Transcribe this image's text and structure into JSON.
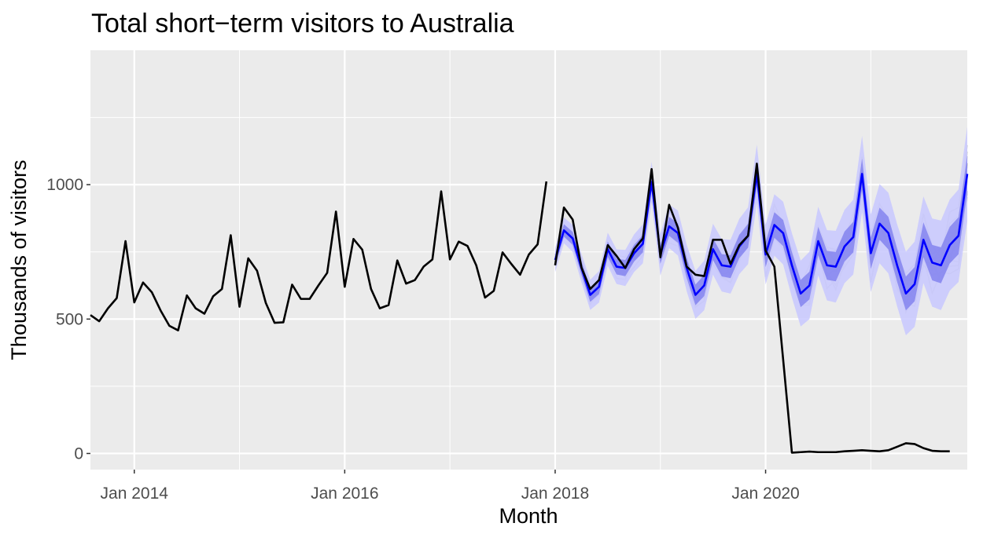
{
  "chart_data": {
    "type": "line",
    "title": "Total short−term visitors to Australia",
    "xlabel": "Month",
    "ylabel": "Thousands of visitors",
    "x_ticks": [
      "Jan 2014",
      "Jan 2016",
      "Jan 2018",
      "Jan 2020"
    ],
    "y_ticks": [
      "0",
      "500",
      "1000"
    ],
    "xlim": [
      "2013-08",
      "2021-12"
    ],
    "ylim": [
      -60,
      1500
    ],
    "grid": true,
    "legend": "none",
    "colors": {
      "panel": "#ebebeb",
      "grid": "#ffffff",
      "actual": "#000000",
      "forecast_mean": "#0000ff",
      "interval_80": "#7a7aee",
      "interval_95": "#c8c8ff",
      "sample_paths": "#cccccc"
    },
    "series": [
      {
        "role": "observed",
        "start": "2013-08",
        "values": [
          515,
          492,
          540,
          578,
          790,
          562,
          636,
          600,
          532,
          475,
          458,
          588,
          540,
          520,
          585,
          612,
          812,
          546,
          726,
          680,
          560,
          486,
          488,
          628,
          575,
          575,
          625,
          672,
          900,
          620,
          798,
          758,
          612,
          540,
          552,
          718,
          632,
          645,
          695,
          722,
          975,
          722,
          788,
          772,
          700,
          580,
          605,
          748,
          705,
          665,
          740,
          778,
          1012
        ]
      },
      {
        "role": "observed",
        "start": "2018-01",
        "values": [
          700,
          915,
          870,
          692,
          612,
          645,
          775,
          735,
          690,
          760,
          800,
          1058,
          730,
          925,
          840,
          695,
          665,
          660,
          795,
          795,
          705,
          775,
          810,
          1078,
          755,
          695,
          350,
          3,
          5,
          7,
          5,
          5,
          5,
          8,
          10,
          12,
          10,
          8,
          12,
          25,
          38,
          35,
          20,
          10,
          8,
          8
        ]
      },
      {
        "role": "forecast_mean",
        "start": "2018-01",
        "values": [
          720,
          830,
          800,
          690,
          590,
          620,
          760,
          695,
          690,
          745,
          780,
          1010,
          740,
          845,
          820,
          690,
          590,
          625,
          760,
          700,
          695,
          770,
          810,
          1040,
          740,
          850,
          820,
          700,
          595,
          625,
          790,
          700,
          695,
          770,
          805,
          1040,
          745,
          855,
          820,
          700,
          595,
          630,
          795,
          710,
          700,
          775,
          810,
          1040
        ]
      }
    ],
    "intervals": [
      {
        "level": 80,
        "half_width_start": 22,
        "half_width_end": 70
      },
      {
        "level": 95,
        "half_width_start": 45,
        "half_width_end": 175
      }
    ]
  }
}
